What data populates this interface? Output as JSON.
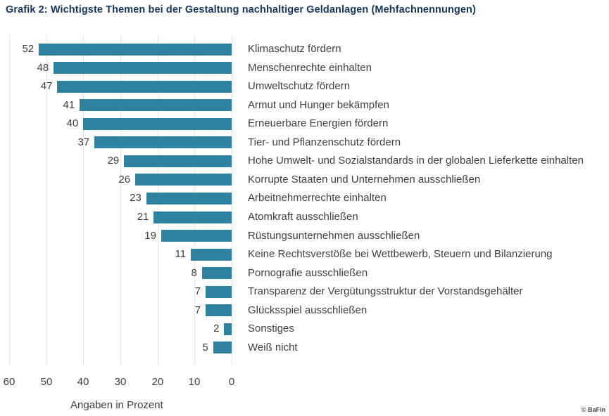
{
  "header": {
    "title": "Grafik 2: Wichtigste Themen bei der Gestaltung nachhaltiger Geldanlagen (Mehfachnennungen)"
  },
  "chart_data": {
    "type": "bar",
    "orientation": "horizontal",
    "bars_anchored_right": true,
    "axis_reversed": true,
    "title": "Grafik 2: Wichtigste Themen bei der Gestaltung nachhaltiger Geldanlagen (Mehfachnennungen)",
    "categories": [
      "Klimaschutz fördern",
      "Menschenrechte einhalten",
      "Umweltschutz fördern",
      "Armut und Hunger bekämpfen",
      "Erneuerbare Energien fördern",
      "Tier- und Pflanzenschutz fördern",
      "Hohe Umwelt- und Sozialstandards in der globalen Lieferkette einhalten",
      "Korrupte Staaten und Unternehmen ausschließen",
      "Arbeitnehmerrechte einhalten",
      "Atomkraft ausschließen",
      "Rüstungsunternehmen ausschließen",
      "Keine Rechtsverstöße bei Wettbewerb, Steuern und Bilanzierung",
      "Pornografie ausschließen",
      "Transparenz der Vergütungsstruktur der Vorstandsgehälter",
      "Glücksspiel ausschließen",
      "Sonstiges",
      "Weiß nicht"
    ],
    "values": [
      52,
      48,
      47,
      41,
      40,
      37,
      29,
      26,
      23,
      21,
      19,
      11,
      8,
      7,
      7,
      2,
      5
    ],
    "xlabel": "Angaben in Prozent",
    "x_ticks": [
      60,
      50,
      40,
      30,
      20,
      10,
      0
    ],
    "xlim": [
      0,
      60
    ],
    "grid": true,
    "bar_color": "#2e819f",
    "gridline_color": "#e3e5e7"
  },
  "footer": {
    "copyright": "© BaFin"
  },
  "colors": {
    "title_text": "#17365d",
    "body_text": "#3f3f3f",
    "bar": "#2e819f",
    "background": "#ffffff"
  }
}
